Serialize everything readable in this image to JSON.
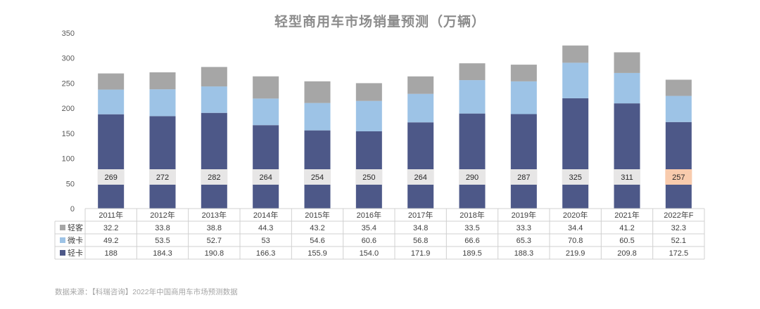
{
  "chart_data": {
    "type": "bar",
    "stacked": true,
    "title": "轻型商用车市场销量预测（万辆）",
    "categories": [
      "2011年",
      "2012年",
      "2013年",
      "2014年",
      "2015年",
      "2016年",
      "2017年",
      "2018年",
      "2019年",
      "2020年",
      "2021年",
      "2022年F"
    ],
    "series": [
      {
        "name": "轻卡",
        "color": "#4d5888",
        "values": [
          188,
          184.3,
          190.8,
          166.3,
          155.9,
          154.0,
          171.9,
          189.5,
          188.3,
          219.9,
          209.8,
          172.5
        ],
        "labels": [
          "188",
          "184.3",
          "190.8",
          "166.3",
          "155.9",
          "154.0",
          "171.9",
          "189.5",
          "188.3",
          "219.9",
          "209.8",
          "172.5"
        ]
      },
      {
        "name": "微卡",
        "color": "#9dc3e6",
        "values": [
          49.2,
          53.5,
          52.7,
          53,
          54.6,
          60.6,
          56.8,
          66.6,
          65.3,
          70.8,
          60.5,
          52.1
        ],
        "labels": [
          "49.2",
          "53.5",
          "52.7",
          "53",
          "54.6",
          "60.6",
          "56.8",
          "66.6",
          "65.3",
          "70.8",
          "60.5",
          "52.1"
        ]
      },
      {
        "name": "轻客",
        "color": "#a6a6a6",
        "values": [
          32.2,
          33.8,
          38.8,
          44.3,
          43.2,
          35.4,
          34.8,
          33.5,
          33.3,
          34.4,
          41.2,
          32.3
        ],
        "labels": [
          "32.2",
          "33.8",
          "38.8",
          "44.3",
          "43.2",
          "35.4",
          "34.8",
          "33.5",
          "33.3",
          "34.4",
          "41.2",
          "32.3"
        ]
      }
    ],
    "totals": [
      "269",
      "272",
      "282",
      "264",
      "254",
      "250",
      "264",
      "290",
      "287",
      "325",
      "311",
      "257"
    ],
    "highlight_total_index": 11,
    "highlight_color": "#f8cbad",
    "total_box_color": "#e7e6e6",
    "yticks": [
      "0",
      "50",
      "100",
      "150",
      "200",
      "250",
      "300",
      "350"
    ],
    "ylim": [
      0,
      350
    ],
    "table_rows": [
      "轻客",
      "微卡",
      "轻卡"
    ],
    "legend": "data-table"
  },
  "source_text": "数据来源：【科瑞咨询】2022年中国商用车市场预测数据"
}
